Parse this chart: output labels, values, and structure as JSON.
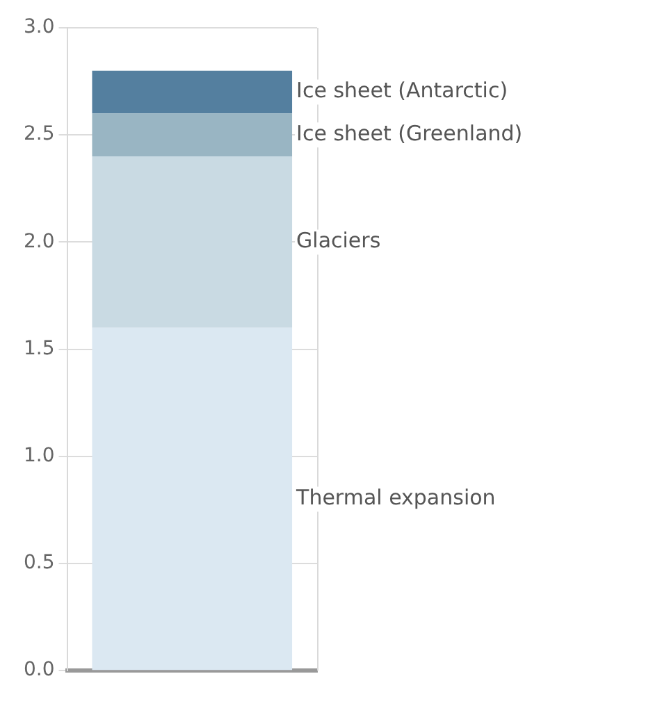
{
  "chart_data": {
    "type": "bar",
    "stacked": true,
    "categories": [
      null
    ],
    "ylim": [
      0,
      3
    ],
    "yticks": [
      {
        "value": 0,
        "label": "0.0"
      },
      {
        "value": 0.5,
        "label": "0.5"
      },
      {
        "value": 1,
        "label": "1.0"
      },
      {
        "value": 1.5,
        "label": "1.5"
      },
      {
        "value": 2,
        "label": "2.0"
      },
      {
        "value": 2.5,
        "label": "2.5"
      },
      {
        "value": 3,
        "label": "3.0"
      }
    ],
    "grid": "y",
    "legend": false,
    "series": [
      {
        "name": "Thermal expansion",
        "color": "#dbe8f2",
        "values": [
          1.6
        ]
      },
      {
        "name": "Glaciers",
        "color": "#c9dae3",
        "values": [
          0.8
        ]
      },
      {
        "name": "Ice sheet (Greenland)",
        "color": "#99b5c3",
        "values": [
          0.2
        ]
      },
      {
        "name": "Ice sheet (Antarctic)",
        "color": "#547f9f",
        "values": [
          0.2
        ]
      }
    ]
  }
}
